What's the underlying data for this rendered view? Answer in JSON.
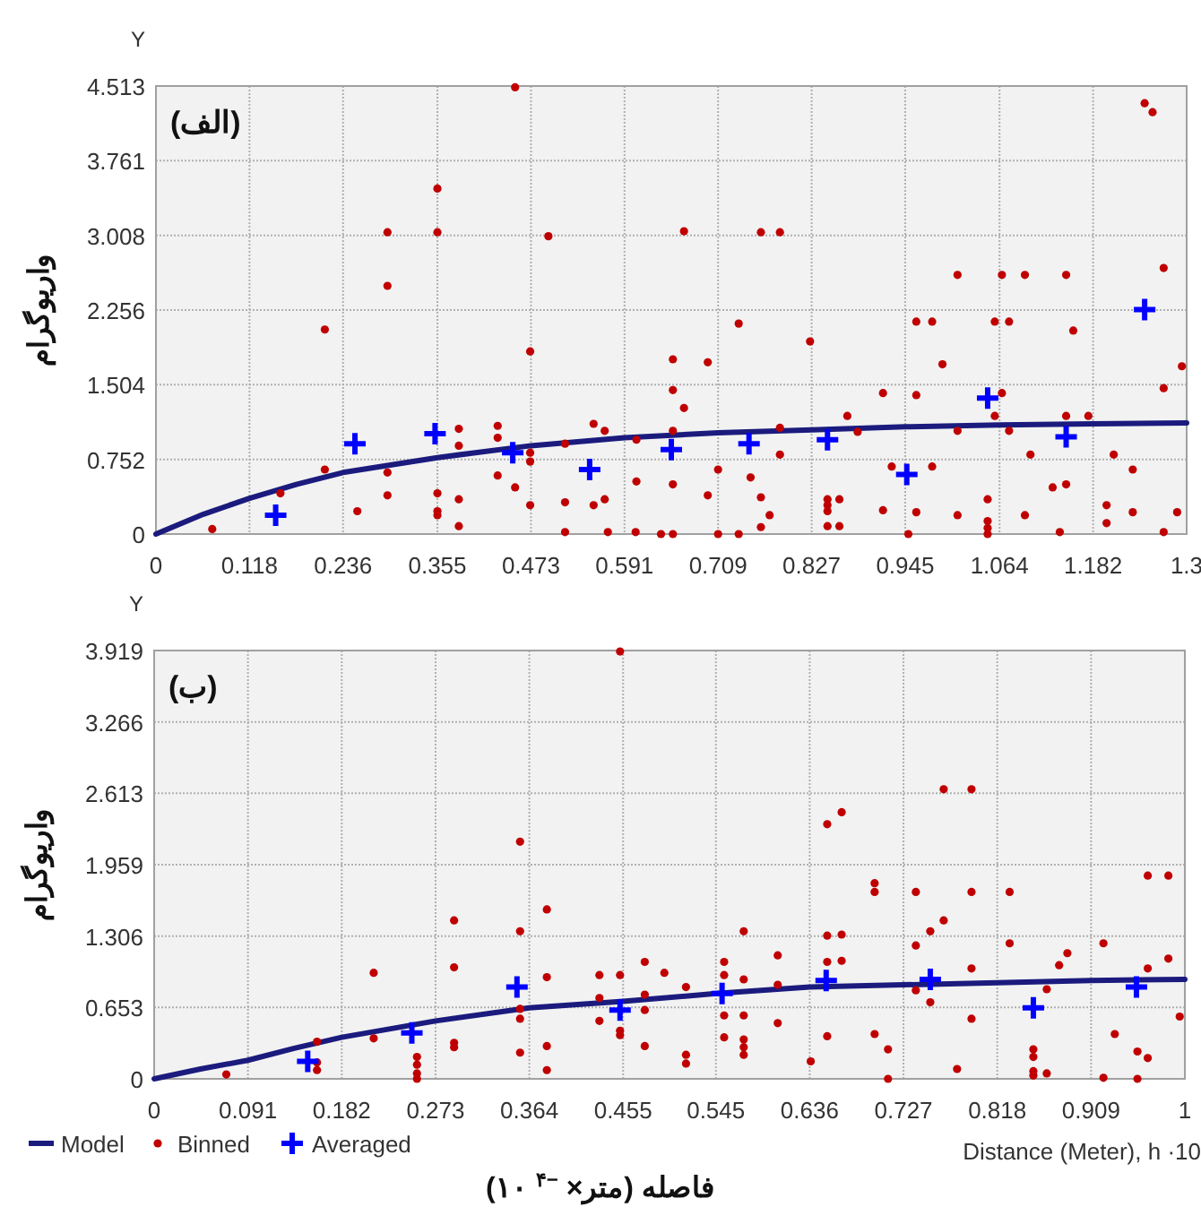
{
  "chart_data": [
    {
      "type": "scatter",
      "ylabel": "واریوگرام",
      "annotations": [
        "(الف)",
        "Y"
      ],
      "xlim": [
        0,
        1.3
      ],
      "ylim": [
        0,
        4.513
      ],
      "xticks": [
        0,
        0.118,
        0.236,
        0.355,
        0.473,
        0.591,
        0.709,
        0.827,
        0.945,
        1.064,
        1.182,
        1.3
      ],
      "yticks": [
        0,
        0.752,
        1.504,
        2.256,
        3.008,
        3.761,
        4.513
      ],
      "grid": true,
      "legend": false,
      "series": [
        {
          "type": "line",
          "color": "#1b1b7e",
          "marker": "none",
          "x": [
            0,
            0.06,
            0.118,
            0.177,
            0.236,
            0.355,
            0.473,
            0.591,
            0.709,
            0.827,
            0.945,
            1.064,
            1.182,
            1.3
          ],
          "values": [
            0,
            0.2,
            0.36,
            0.5,
            0.62,
            0.77,
            0.89,
            0.97,
            1.02,
            1.05,
            1.08,
            1.1,
            1.11,
            1.12
          ]
        },
        {
          "type": "scatter",
          "color": "#c00000",
          "marker": "circle",
          "x": [
            0.071,
            0.157,
            0.213,
            0.213,
            0.254,
            0.292,
            0.292,
            0.292,
            0.292,
            0.355,
            0.355,
            0.355,
            0.355,
            0.355,
            0.382,
            0.382,
            0.382,
            0.382,
            0.431,
            0.431,
            0.431,
            0.453,
            0.453,
            0.472,
            0.472,
            0.472,
            0.472,
            0.495,
            0.516,
            0.516,
            0.516,
            0.552,
            0.552,
            0.566,
            0.566,
            0.57,
            0.606,
            0.606,
            0.605,
            0.637,
            0.652,
            0.652,
            0.652,
            0.666,
            0.652,
            0.652,
            0.666,
            0.696,
            0.696,
            0.709,
            0.709,
            0.735,
            0.735,
            0.75,
            0.763,
            0.787,
            0.763,
            0.774,
            0.763,
            0.787,
            0.787,
            0.825,
            0.847,
            0.847,
            0.847,
            0.862,
            0.847,
            0.862,
            0.872,
            0.885,
            0.917,
            0.917,
            0.928,
            0.959,
            0.979,
            0.959,
            0.959,
            0.949,
            0.979,
            0.992,
            1.011,
            1.011,
            1.011,
            1.049,
            1.049,
            1.049,
            1.049,
            1.058,
            1.076,
            1.067,
            1.096,
            1.067,
            1.058,
            1.076,
            1.103,
            1.096,
            1.131,
            1.148,
            1.14,
            1.148,
            1.157,
            1.148,
            1.176,
            1.208,
            1.199,
            1.199,
            1.232,
            1.232,
            1.247,
            1.257,
            1.271,
            1.271,
            1.271,
            1.288,
            1.294
          ],
          "values": [
            0.05,
            0.41,
            2.06,
            0.65,
            0.23,
            3.04,
            2.5,
            0.62,
            0.39,
            3.48,
            3.04,
            0.41,
            0.23,
            0.19,
            1.06,
            0.89,
            0.35,
            0.08,
            1.09,
            0.97,
            0.59,
            4.5,
            0.47,
            1.84,
            0.82,
            0.73,
            0.29,
            3.0,
            0.91,
            0.32,
            0.02,
            1.11,
            0.29,
            1.04,
            0.35,
            0.02,
            0.95,
            0.53,
            0.02,
            0.0,
            0.0,
            1.76,
            1.45,
            1.27,
            1.04,
            0.5,
            3.05,
            1.73,
            0.39,
            0.65,
            0.0,
            0.0,
            2.12,
            0.57,
            3.04,
            3.04,
            0.37,
            0.19,
            0.07,
            1.07,
            0.8,
            1.94,
            0.35,
            0.29,
            0.23,
            0.35,
            0.08,
            0.08,
            1.19,
            1.03,
            1.42,
            0.24,
            0.68,
            2.14,
            2.14,
            1.4,
            0.22,
            0.0,
            0.68,
            1.71,
            2.61,
            1.04,
            0.19,
            0.35,
            0.13,
            0.06,
            0.0,
            2.14,
            2.14,
            2.61,
            2.61,
            1.42,
            1.19,
            1.04,
            0.8,
            0.19,
            0.47,
            0.5,
            0.02,
            2.61,
            2.05,
            1.19,
            1.19,
            0.8,
            0.29,
            0.11,
            0.65,
            0.22,
            4.34,
            4.25,
            2.68,
            1.47,
            0.02,
            0.22,
            1.69
          ]
        },
        {
          "type": "scatter",
          "color": "#0000ff",
          "marker": "cross",
          "x": [
            0.151,
            0.251,
            0.352,
            0.45,
            0.547,
            0.65,
            0.748,
            0.847,
            0.947,
            1.049,
            1.148,
            1.247
          ],
          "values": [
            0.19,
            0.91,
            1.01,
            0.82,
            0.65,
            0.85,
            0.91,
            0.95,
            0.6,
            1.37,
            0.98,
            2.26
          ]
        }
      ]
    },
    {
      "type": "scatter",
      "xlabel": "Distance (Meter), h ·10",
      "ylabel": "واریوگرام",
      "annotations": [
        "(ب)",
        "Y",
        "فاصله (متر× $^{−۴}$ ۱۰)"
      ],
      "xlim": [
        0,
        1
      ],
      "ylim": [
        0,
        3.919
      ],
      "xticks": [
        0,
        0.091,
        0.182,
        0.273,
        0.364,
        0.455,
        0.545,
        0.636,
        0.727,
        0.818,
        0.909,
        1
      ],
      "yticks": [
        0,
        0.653,
        1.306,
        1.959,
        2.613,
        3.266,
        3.919
      ],
      "grid": true,
      "legend": "bottom left",
      "series": [
        {
          "name": "Model",
          "type": "line",
          "color": "#1b1b7e",
          "marker": "none",
          "x": [
            0,
            0.045,
            0.091,
            0.136,
            0.182,
            0.273,
            0.364,
            0.455,
            0.545,
            0.636,
            0.727,
            0.818,
            0.909,
            1
          ],
          "values": [
            0,
            0.09,
            0.17,
            0.28,
            0.38,
            0.53,
            0.65,
            0.71,
            0.78,
            0.84,
            0.86,
            0.88,
            0.9,
            0.91
          ]
        },
        {
          "name": "Binned",
          "type": "scatter",
          "color": "#c00000",
          "marker": "circle",
          "x": [
            0.07,
            0.158,
            0.158,
            0.158,
            0.213,
            0.213,
            0.255,
            0.255,
            0.255,
            0.255,
            0.291,
            0.291,
            0.291,
            0.291,
            0.355,
            0.355,
            0.355,
            0.355,
            0.355,
            0.381,
            0.381,
            0.381,
            0.381,
            0.432,
            0.432,
            0.432,
            0.452,
            0.452,
            0.452,
            0.452,
            0.476,
            0.476,
            0.476,
            0.476,
            0.495,
            0.516,
            0.516,
            0.516,
            0.553,
            0.553,
            0.553,
            0.553,
            0.572,
            0.572,
            0.572,
            0.572,
            0.572,
            0.572,
            0.605,
            0.605,
            0.605,
            0.637,
            0.653,
            0.667,
            0.653,
            0.667,
            0.653,
            0.667,
            0.653,
            0.699,
            0.699,
            0.699,
            0.712,
            0.712,
            0.739,
            0.739,
            0.739,
            0.753,
            0.753,
            0.766,
            0.766,
            0.779,
            0.793,
            0.793,
            0.793,
            0.793,
            0.83,
            0.83,
            0.853,
            0.853,
            0.853,
            0.853,
            0.866,
            0.866,
            0.878,
            0.886,
            0.921,
            0.932,
            0.921,
            0.954,
            0.954,
            0.964,
            0.984,
            0.964,
            0.964,
            0.984,
            0.995
          ],
          "values": [
            0.04,
            0.34,
            0.15,
            0.08,
            0.97,
            0.37,
            0.2,
            0.13,
            0.05,
            0.0,
            1.45,
            1.02,
            0.33,
            0.29,
            2.17,
            1.35,
            0.64,
            0.55,
            0.24,
            1.55,
            0.93,
            0.3,
            0.08,
            0.95,
            0.74,
            0.53,
            3.91,
            0.95,
            0.44,
            0.4,
            1.07,
            0.77,
            0.63,
            0.3,
            0.97,
            0.84,
            0.22,
            0.14,
            1.07,
            0.95,
            0.58,
            0.38,
            1.35,
            0.91,
            0.58,
            0.36,
            0.29,
            0.22,
            1.13,
            0.86,
            0.51,
            0.16,
            2.33,
            2.44,
            1.31,
            1.32,
            1.07,
            1.08,
            0.39,
            1.79,
            1.71,
            0.41,
            0.27,
            0.0,
            1.71,
            1.22,
            0.81,
            1.35,
            0.7,
            2.65,
            1.45,
            0.09,
            2.65,
            1.71,
            1.01,
            0.55,
            1.71,
            1.24,
            0.27,
            0.2,
            0.07,
            0.03,
            0.82,
            0.05,
            1.04,
            1.15,
            1.24,
            0.41,
            0.01,
            0.25,
            0.0,
            1.86,
            1.86,
            1.01,
            0.19,
            1.1,
            0.57
          ]
        },
        {
          "name": "Averaged",
          "type": "scatter",
          "color": "#0000ff",
          "marker": "cross",
          "x": [
            0.149,
            0.25,
            0.352,
            0.452,
            0.551,
            0.652,
            0.753,
            0.853,
            0.953
          ],
          "values": [
            0.16,
            0.42,
            0.84,
            0.63,
            0.78,
            0.9,
            0.91,
            0.65,
            0.84
          ]
        }
      ]
    }
  ]
}
